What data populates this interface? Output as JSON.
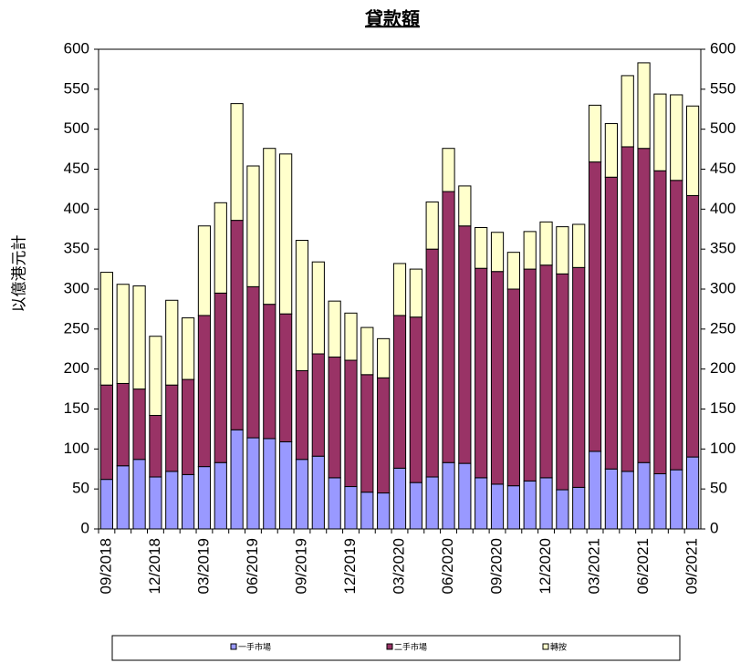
{
  "chart_data": {
    "type": "stacked-bar",
    "title": "貸款額",
    "y_label": "以億港元計",
    "categories": [
      "09/2018",
      null,
      null,
      "12/2018",
      null,
      null,
      "03/2019",
      null,
      null,
      "06/2019",
      null,
      null,
      "09/2019",
      null,
      null,
      "12/2019",
      null,
      null,
      "03/2020",
      null,
      null,
      "06/2020",
      null,
      null,
      "09/2020",
      null,
      null,
      "12/2020",
      null,
      null,
      "03/2021",
      null,
      null,
      "06/2021",
      null,
      null,
      "09/2021"
    ],
    "series": [
      {
        "name": "一手市場",
        "color": "#9999ff",
        "values": [
          62,
          79,
          87,
          65,
          72,
          68,
          78,
          83,
          124,
          114,
          113,
          109,
          87,
          91,
          64,
          53,
          46,
          45,
          76,
          58,
          65,
          83,
          82,
          64,
          56,
          54,
          60,
          64,
          49,
          52,
          97,
          75,
          72,
          83,
          69,
          74,
          90
        ]
      },
      {
        "name": "二手市場",
        "color": "#993366",
        "values": [
          118,
          103,
          88,
          77,
          108,
          119,
          189,
          212,
          262,
          189,
          168,
          160,
          111,
          128,
          151,
          158,
          147,
          144,
          191,
          207,
          285,
          339,
          297,
          262,
          266,
          246,
          265,
          266,
          270,
          275,
          362,
          365,
          406,
          393,
          379,
          362,
          327
        ]
      },
      {
        "name": "轉按",
        "color": "#ffffcc",
        "values": [
          141,
          124,
          129,
          99,
          106,
          77,
          112,
          113,
          146,
          151,
          195,
          200,
          163,
          115,
          70,
          59,
          59,
          49,
          65,
          60,
          59,
          54,
          50,
          51,
          49,
          46,
          47,
          54,
          59,
          54,
          71,
          67,
          89,
          107,
          96,
          107,
          112
        ]
      }
    ],
    "ylim": [
      0,
      600
    ],
    "yticks": [
      0,
      50,
      100,
      150,
      200,
      250,
      300,
      350,
      400,
      450,
      500,
      550,
      600
    ],
    "y2lim": [
      0,
      600
    ],
    "y2ticks": [
      0,
      50,
      100,
      150,
      200,
      250,
      300,
      350,
      400,
      450,
      500,
      550,
      600
    ]
  }
}
